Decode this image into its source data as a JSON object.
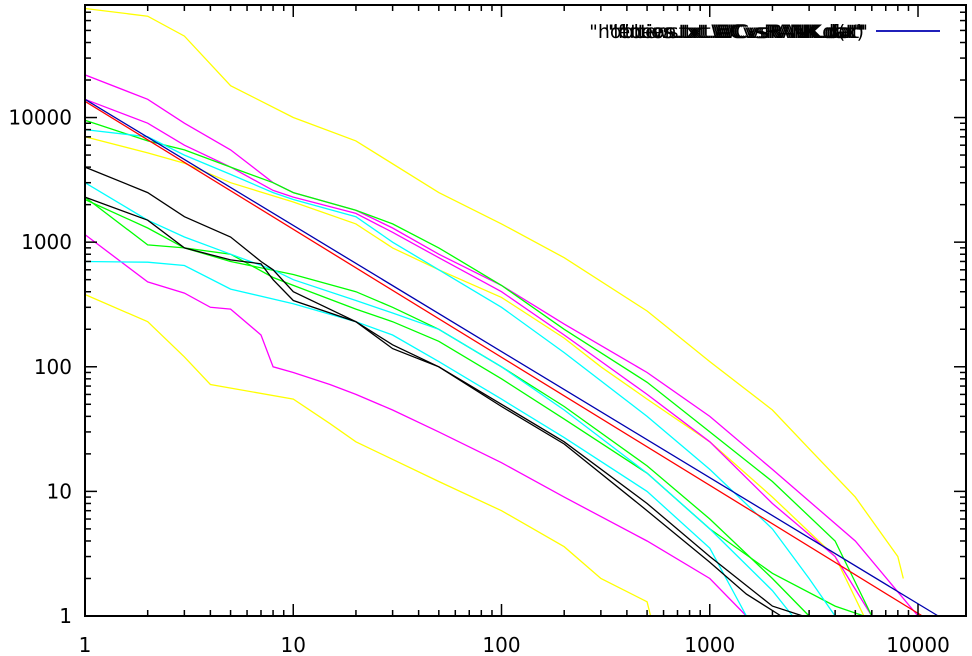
{
  "chart_data": {
    "type": "line",
    "title": "",
    "xlabel": "",
    "ylabel": "",
    "xscale": "log",
    "yscale": "log",
    "xlim": [
      1,
      17000
    ],
    "ylim": [
      1,
      80000
    ],
    "grid": false,
    "legend_position": "top-right",
    "x_ticks": [
      {
        "value": 1,
        "label": "1"
      },
      {
        "value": 10,
        "label": "10"
      },
      {
        "value": 100,
        "label": "100"
      },
      {
        "value": 1000,
        "label": "1000"
      },
      {
        "value": 10000,
        "label": "10000"
      }
    ],
    "y_ticks": [
      {
        "value": 1,
        "label": "1"
      },
      {
        "value": 10,
        "label": "10"
      },
      {
        "value": 100,
        "label": "100"
      },
      {
        "value": 1000,
        "label": "1000"
      },
      {
        "value": 10000,
        "label": "10000"
      }
    ],
    "legend": {
      "overlapped_labels": [
        "\"news.txt.WCvsRANK.dat\"",
        "\"fiction.txt.WCvsRANK.dat\"",
        "\"letters.txt.WCvsRANK.dat\"",
        "\"hobbies.txt.WCvsRANK.dat\""
      ],
      "fit_label": "f(x)",
      "fit_color": "#0000b0"
    },
    "series": [
      {
        "color": "#ffff00",
        "points": [
          [
            1,
            75000
          ],
          [
            2,
            65000
          ],
          [
            3,
            45000
          ],
          [
            5,
            18000
          ],
          [
            10,
            10000
          ],
          [
            20,
            6500
          ],
          [
            50,
            2500
          ],
          [
            100,
            1400
          ],
          [
            200,
            750
          ],
          [
            500,
            280
          ],
          [
            1000,
            110
          ],
          [
            2000,
            45
          ],
          [
            3000,
            22
          ],
          [
            5000,
            9
          ],
          [
            8000,
            3
          ],
          [
            8500,
            2
          ]
        ]
      },
      {
        "color": "#ffff00",
        "points": [
          [
            1,
            7000
          ],
          [
            2,
            5200
          ],
          [
            3,
            4300
          ],
          [
            5,
            3000
          ],
          [
            10,
            2100
          ],
          [
            20,
            1400
          ],
          [
            30,
            900
          ],
          [
            50,
            600
          ],
          [
            100,
            360
          ],
          [
            200,
            170
          ],
          [
            300,
            100
          ],
          [
            500,
            55
          ],
          [
            1000,
            25
          ],
          [
            2000,
            9
          ],
          [
            4000,
            3
          ],
          [
            5500,
            1
          ]
        ]
      },
      {
        "color": "#ffff00",
        "points": [
          [
            1,
            380
          ],
          [
            2,
            230
          ],
          [
            3,
            120
          ],
          [
            4,
            72
          ],
          [
            10,
            55
          ],
          [
            15,
            35
          ],
          [
            20,
            25
          ],
          [
            50,
            12
          ],
          [
            100,
            7
          ],
          [
            200,
            3.6
          ],
          [
            300,
            2
          ],
          [
            500,
            1.3
          ],
          [
            520,
            1
          ]
        ]
      },
      {
        "color": "#ff00ff",
        "points": [
          [
            1,
            22000
          ],
          [
            2,
            14000
          ],
          [
            3,
            9000
          ],
          [
            5,
            5500
          ],
          [
            8,
            3000
          ],
          [
            10,
            2500
          ],
          [
            20,
            1800
          ],
          [
            30,
            1300
          ],
          [
            50,
            800
          ],
          [
            100,
            450
          ],
          [
            200,
            220
          ],
          [
            500,
            90
          ],
          [
            1000,
            40
          ],
          [
            2000,
            15
          ],
          [
            5000,
            4
          ],
          [
            10000,
            1
          ]
        ]
      },
      {
        "color": "#ff00ff",
        "points": [
          [
            1,
            14000
          ],
          [
            2,
            9000
          ],
          [
            3,
            6000
          ],
          [
            5,
            4000
          ],
          [
            8,
            2600
          ],
          [
            10,
            2300
          ],
          [
            20,
            1700
          ],
          [
            30,
            1200
          ],
          [
            50,
            750
          ],
          [
            100,
            400
          ],
          [
            200,
            180
          ],
          [
            500,
            60
          ],
          [
            1000,
            25
          ],
          [
            2000,
            8
          ],
          [
            4000,
            3
          ],
          [
            6000,
            1
          ]
        ]
      },
      {
        "color": "#ff00ff",
        "points": [
          [
            1,
            1150
          ],
          [
            2,
            480
          ],
          [
            3,
            390
          ],
          [
            4,
            300
          ],
          [
            5,
            290
          ],
          [
            7,
            180
          ],
          [
            8,
            100
          ],
          [
            10,
            90
          ],
          [
            15,
            72
          ],
          [
            20,
            60
          ],
          [
            30,
            45
          ],
          [
            50,
            30
          ],
          [
            100,
            17
          ],
          [
            200,
            9
          ],
          [
            500,
            4
          ],
          [
            1000,
            2
          ],
          [
            1500,
            1
          ]
        ]
      },
      {
        "color": "#00ff00",
        "points": [
          [
            1,
            9500
          ],
          [
            2,
            6500
          ],
          [
            3,
            5500
          ],
          [
            5,
            4000
          ],
          [
            8,
            3000
          ],
          [
            10,
            2500
          ],
          [
            20,
            1800
          ],
          [
            30,
            1400
          ],
          [
            50,
            900
          ],
          [
            100,
            450
          ],
          [
            200,
            200
          ],
          [
            500,
            75
          ],
          [
            1000,
            30
          ],
          [
            2000,
            12
          ],
          [
            4000,
            4
          ],
          [
            6000,
            1
          ]
        ]
      },
      {
        "color": "#00ff00",
        "points": [
          [
            1,
            2300
          ],
          [
            2,
            950
          ],
          [
            3,
            900
          ],
          [
            5,
            800
          ],
          [
            8,
            520
          ],
          [
            10,
            450
          ],
          [
            20,
            290
          ],
          [
            30,
            230
          ],
          [
            50,
            160
          ],
          [
            100,
            80
          ],
          [
            200,
            38
          ],
          [
            500,
            14
          ],
          [
            1000,
            5
          ],
          [
            2000,
            2.2
          ],
          [
            4000,
            1.2
          ],
          [
            5500,
            1
          ]
        ]
      },
      {
        "color": "#00ff00",
        "points": [
          [
            1,
            2200
          ],
          [
            2,
            1300
          ],
          [
            3,
            900
          ],
          [
            5,
            700
          ],
          [
            10,
            550
          ],
          [
            20,
            400
          ],
          [
            30,
            300
          ],
          [
            50,
            200
          ],
          [
            100,
            100
          ],
          [
            200,
            48
          ],
          [
            500,
            16
          ],
          [
            1000,
            6
          ],
          [
            2000,
            2
          ],
          [
            3000,
            1
          ]
        ]
      },
      {
        "color": "#00ffff",
        "points": [
          [
            1,
            8000
          ],
          [
            2,
            7000
          ],
          [
            3,
            5000
          ],
          [
            5,
            3500
          ],
          [
            8,
            2500
          ],
          [
            10,
            2200
          ],
          [
            20,
            1600
          ],
          [
            30,
            1000
          ],
          [
            50,
            600
          ],
          [
            100,
            300
          ],
          [
            200,
            130
          ],
          [
            500,
            40
          ],
          [
            1000,
            15
          ],
          [
            2000,
            5
          ],
          [
            3000,
            2
          ],
          [
            4000,
            1
          ]
        ]
      },
      {
        "color": "#00ffff",
        "points": [
          [
            1,
            3000
          ],
          [
            2,
            1500
          ],
          [
            3,
            1100
          ],
          [
            5,
            800
          ],
          [
            8,
            600
          ],
          [
            10,
            500
          ],
          [
            20,
            340
          ],
          [
            30,
            270
          ],
          [
            50,
            200
          ],
          [
            100,
            100
          ],
          [
            200,
            45
          ],
          [
            500,
            14
          ],
          [
            1000,
            5
          ],
          [
            2000,
            1.6
          ],
          [
            2500,
            1
          ]
        ]
      },
      {
        "color": "#00ffff",
        "points": [
          [
            1,
            700
          ],
          [
            2,
            690
          ],
          [
            3,
            650
          ],
          [
            5,
            420
          ],
          [
            10,
            320
          ],
          [
            20,
            230
          ],
          [
            30,
            180
          ],
          [
            50,
            110
          ],
          [
            100,
            55
          ],
          [
            200,
            27
          ],
          [
            500,
            10
          ],
          [
            1000,
            3.5
          ],
          [
            1500,
            1
          ]
        ]
      },
      {
        "color": "#000000",
        "points": [
          [
            1,
            4000
          ],
          [
            2,
            2500
          ],
          [
            3,
            1600
          ],
          [
            5,
            1100
          ],
          [
            7,
            700
          ],
          [
            8,
            600
          ],
          [
            10,
            400
          ],
          [
            20,
            230
          ],
          [
            30,
            150
          ],
          [
            50,
            100
          ],
          [
            100,
            50
          ],
          [
            200,
            25
          ],
          [
            500,
            8
          ],
          [
            1000,
            3
          ],
          [
            2000,
            1.2
          ],
          [
            2800,
            1
          ]
        ]
      },
      {
        "color": "#000000",
        "points": [
          [
            1,
            2300
          ],
          [
            2,
            1500
          ],
          [
            3,
            900
          ],
          [
            5,
            720
          ],
          [
            7,
            670
          ],
          [
            8,
            500
          ],
          [
            10,
            340
          ],
          [
            20,
            230
          ],
          [
            30,
            140
          ],
          [
            50,
            100
          ],
          [
            100,
            48
          ],
          [
            200,
            24
          ],
          [
            500,
            7
          ],
          [
            1000,
            2.7
          ],
          [
            1500,
            1.5
          ],
          [
            2200,
            1
          ]
        ]
      },
      {
        "color": "#0000b0",
        "points": [
          [
            1,
            14000
          ],
          [
            12500,
            1
          ]
        ]
      },
      {
        "color": "#ff0000",
        "points": [
          [
            1,
            13500
          ],
          [
            10500,
            1
          ]
        ]
      }
    ]
  }
}
